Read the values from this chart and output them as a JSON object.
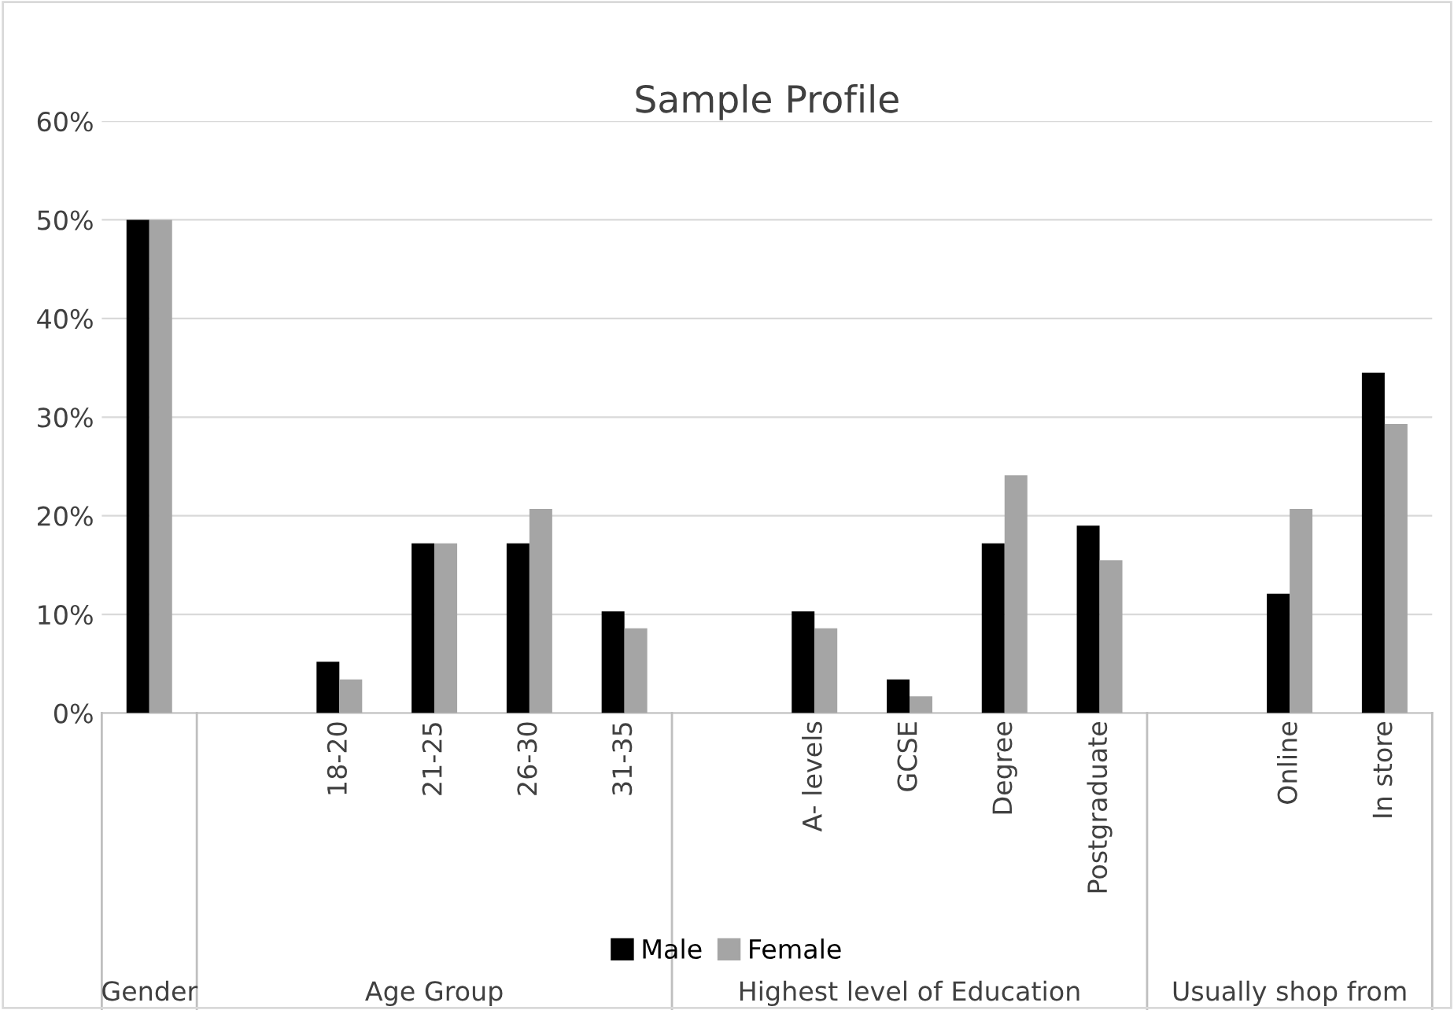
{
  "chart_data": {
    "type": "bar",
    "title": "Sample Profile",
    "categories": [
      null,
      null,
      "18-20",
      "21-25",
      "26-30",
      "31-35",
      null,
      "A- levels",
      "GCSE",
      "Degree",
      "Postgraduate",
      null,
      "Online",
      "In store"
    ],
    "series": [
      {
        "name": "Male",
        "color": "#000000",
        "values": [
          50,
          null,
          5.2,
          17.2,
          17.2,
          10.3,
          null,
          10.3,
          3.4,
          17.2,
          19.0,
          null,
          12.1,
          34.5
        ]
      },
      {
        "name": "Female",
        "color": "#a5a5a5",
        "values": [
          50,
          null,
          3.4,
          17.2,
          20.7,
          8.6,
          null,
          8.6,
          1.7,
          24.1,
          15.5,
          null,
          20.7,
          29.3
        ]
      }
    ],
    "ylim": [
      0,
      60
    ],
    "yticks": [
      {
        "value": 0,
        "label": "0%"
      },
      {
        "value": 10,
        "label": "10%"
      },
      {
        "value": 20,
        "label": "20%"
      },
      {
        "value": 30,
        "label": "30%"
      },
      {
        "value": 40,
        "label": "40%"
      },
      {
        "value": 50,
        "label": "50%"
      },
      {
        "value": 60,
        "label": "60%"
      }
    ],
    "grid": "y",
    "legend": "bottom",
    "annotations": [
      "Gender",
      "Age Group",
      "Highest level of Education",
      "Usually shop from"
    ]
  }
}
